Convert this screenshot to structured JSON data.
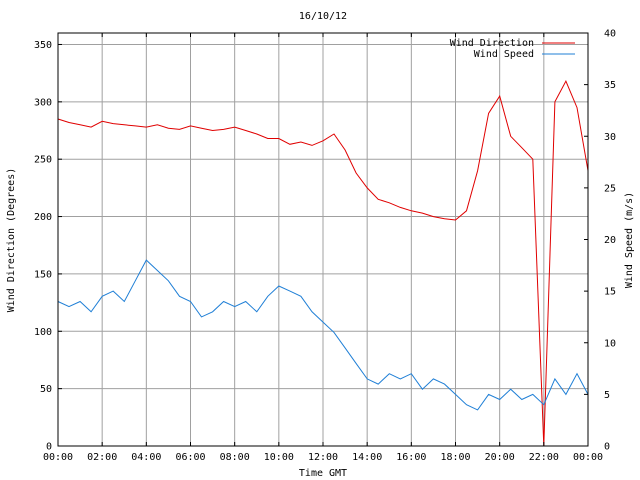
{
  "chart_data": {
    "type": "line",
    "title": "16/10/12",
    "xlabel": "Time GMT",
    "ylabel": "Wind Direction (Degrees)",
    "y2label": "Wind Speed (m/s)",
    "xlim": [
      0,
      24
    ],
    "ylim": [
      0,
      360
    ],
    "y2lim": [
      0,
      40
    ],
    "x_ticks": [
      {
        "pos": 0,
        "label": "00:00"
      },
      {
        "pos": 2,
        "label": "02:00"
      },
      {
        "pos": 4,
        "label": "04:00"
      },
      {
        "pos": 6,
        "label": "06:00"
      },
      {
        "pos": 8,
        "label": "08:00"
      },
      {
        "pos": 10,
        "label": "10:00"
      },
      {
        "pos": 12,
        "label": "12:00"
      },
      {
        "pos": 14,
        "label": "14:00"
      },
      {
        "pos": 16,
        "label": "16:00"
      },
      {
        "pos": 18,
        "label": "18:00"
      },
      {
        "pos": 20,
        "label": "20:00"
      },
      {
        "pos": 22,
        "label": "22:00"
      },
      {
        "pos": 24,
        "label": "00:00"
      }
    ],
    "y_ticks": [
      0,
      50,
      100,
      150,
      200,
      250,
      300,
      350
    ],
    "y2_ticks": [
      0,
      5,
      10,
      15,
      20,
      25,
      30,
      35,
      40
    ],
    "grid": true,
    "legend_position": "top-right",
    "series": [
      {
        "name": "Wind Direction",
        "axis": "left",
        "color": "#e00000",
        "x": [
          0,
          0.5,
          1,
          1.5,
          2,
          2.5,
          3,
          3.5,
          4,
          4.5,
          5,
          5.5,
          6,
          6.5,
          7,
          7.5,
          8,
          8.5,
          9,
          9.5,
          10,
          10.5,
          11,
          11.5,
          12,
          12.5,
          13,
          13.5,
          14,
          14.5,
          15,
          15.5,
          16,
          16.5,
          17,
          17.5,
          18,
          18.5,
          19,
          19.5,
          20,
          20.5,
          21,
          21.5,
          22,
          22.5,
          23,
          23.5,
          24
        ],
        "values": [
          285,
          282,
          280,
          278,
          283,
          281,
          280,
          279,
          278,
          280,
          277,
          276,
          279,
          277,
          275,
          276,
          278,
          275,
          272,
          268,
          268,
          263,
          265,
          262,
          266,
          272,
          258,
          238,
          225,
          215,
          212,
          208,
          205,
          203,
          200,
          198,
          197,
          205,
          240,
          290,
          305,
          270,
          260,
          250,
          0,
          300,
          318,
          295,
          240
        ]
      },
      {
        "name": "Wind Speed",
        "axis": "right",
        "color": "#1f7fd6",
        "x": [
          0,
          0.5,
          1,
          1.5,
          2,
          2.5,
          3,
          3.5,
          4,
          4.5,
          5,
          5.5,
          6,
          6.5,
          7,
          7.5,
          8,
          8.5,
          9,
          9.5,
          10,
          10.5,
          11,
          11.5,
          12,
          12.5,
          13,
          13.5,
          14,
          14.5,
          15,
          15.5,
          16,
          16.5,
          17,
          17.5,
          18,
          18.5,
          19,
          19.5,
          20,
          20.5,
          21,
          21.5,
          22,
          22.5,
          23,
          23.5,
          24
        ],
        "values": [
          14,
          13.5,
          14,
          13,
          14.5,
          15,
          14,
          16,
          18,
          17,
          16,
          14.5,
          14,
          12.5,
          13,
          14,
          13.5,
          14,
          13,
          14.5,
          15.5,
          15,
          14.5,
          13,
          12,
          11,
          9.5,
          8,
          6.5,
          6,
          7,
          6.5,
          7,
          5.5,
          6.5,
          6,
          5,
          4,
          3.5,
          5,
          4.5,
          5.5,
          4.5,
          5,
          4,
          6.5,
          5,
          7,
          5
        ]
      }
    ]
  }
}
